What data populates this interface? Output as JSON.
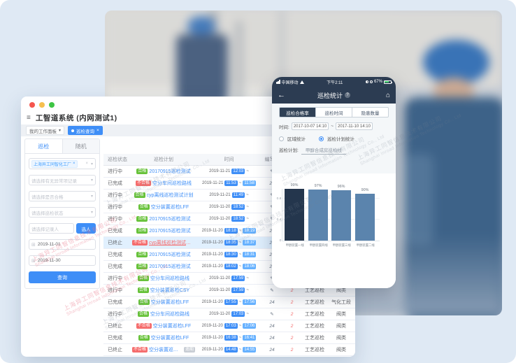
{
  "watermark": {
    "zh": "上海异工同智信息技术有限公司",
    "en": "Shanghai Inroad Information Technology Co., Ltd"
  },
  "colors": {
    "accent": "#3e8ef7",
    "pass_green": "#67c23a",
    "fail_red": "#f56c6c",
    "phone_navy": "#2c3c52",
    "bar_dark": "#24364d",
    "bar_blue": "#5b84ad"
  },
  "desktop": {
    "window_title": "工智道系统 (内网测试1)",
    "burger_icon": "≡",
    "workspace_tab": "我的工作面板",
    "active_tab": "巡检查询",
    "active_tab_close": "×",
    "tab_caret": "▾",
    "sidebar": {
      "tabs": [
        "巡检",
        "随机"
      ],
      "factory_tag": "上海异工同智化工厂",
      "tag_close": "×",
      "selects": [
        "请选择有无异常项记录",
        "请选择是否合格",
        "请选择巡检状态"
      ],
      "recorder_placeholder": "请选择记录人",
      "pick_person_button": "选人",
      "date_start": "2019-11-01",
      "date_end": "2019-11-30",
      "calendar_icon": "⊞",
      "query_button": "查询"
    },
    "table": {
      "headers": [
        "巡检状态",
        "巡检计划",
        "时间",
        "编写人",
        "",
        "",
        ""
      ],
      "rows": [
        {
          "status": "进行中",
          "result": "合格",
          "plan": "20170915巡检测试",
          "red_link": false,
          "date": "2019-11-21",
          "start": "12:03",
          "end": "",
          "items": "✎",
          "abnormal": "2",
          "type": "工艺巡检",
          "area": "阀类",
          "highlight": false,
          "overdue": ""
        },
        {
          "status": "已完成",
          "result": "不合格",
          "plan": "空分车间巡检路线",
          "red_link": false,
          "date": "2019-11-21",
          "start": "11:53",
          "end": "11:58",
          "items": "24",
          "abnormal": "2",
          "type": "工艺巡检",
          "area": "阀类",
          "highlight": false,
          "overdue": ""
        },
        {
          "status": "进行中",
          "result": "合格",
          "plan": "cyp离线巡检测试计划",
          "red_link": false,
          "date": "2019-11-21",
          "start": "11:49",
          "end": "",
          "items": "✎",
          "abnormal": "2",
          "type": "工艺巡检",
          "area": "阀类",
          "highlight": false,
          "overdue": ""
        },
        {
          "status": "进行中",
          "result": "合格",
          "plan": "空分装置巡检LFF",
          "red_link": false,
          "date": "2019-11-20",
          "start": "18:52",
          "end": "",
          "items": "✎",
          "abnormal": "2",
          "type": "工艺巡检",
          "area": "阀类",
          "highlight": false,
          "overdue": ""
        },
        {
          "status": "进行中",
          "result": "合格",
          "plan": "20170915巡检测试",
          "red_link": false,
          "date": "2019-11-20",
          "start": "18:52",
          "end": "",
          "items": "✎",
          "abnormal": "2",
          "type": "工艺巡检",
          "area": "阀类",
          "highlight": false,
          "overdue": ""
        },
        {
          "status": "已完成",
          "result": "合格",
          "plan": "20170915巡检测试",
          "red_link": false,
          "date": "2019-11-20",
          "start": "18:18",
          "end": "18:19",
          "items": "24",
          "abnormal": "2",
          "type": "工艺巡检",
          "area": "阀类",
          "highlight": false,
          "overdue": ""
        },
        {
          "status": "已终止",
          "result": "不合格",
          "plan": "cyp离线巡检测试计划",
          "red_link": true,
          "date": "2019-11-20",
          "start": "18:35",
          "end": "18:37",
          "items": "24",
          "abnormal": "2",
          "type": "工艺巡检",
          "area": "阀类",
          "highlight": true,
          "overdue": ""
        },
        {
          "status": "已完成",
          "result": "合格",
          "plan": "20170915巡检测试",
          "red_link": false,
          "date": "2019-11-20",
          "start": "18:30",
          "end": "18:31",
          "items": "24",
          "abnormal": "2",
          "type": "工艺巡检",
          "area": "阀类",
          "highlight": false,
          "overdue": ""
        },
        {
          "status": "已完成",
          "result": "合格",
          "plan": "20170915巡检测试",
          "red_link": false,
          "date": "2019-11-20",
          "start": "18:02",
          "end": "18:06",
          "items": "24",
          "abnormal": "2",
          "type": "工艺巡检",
          "area": "阀类",
          "highlight": false,
          "overdue": ""
        },
        {
          "status": "进行中",
          "result": "合格",
          "plan": "空分车间巡检路线",
          "red_link": false,
          "date": "2019-11-20",
          "start": "17:59",
          "end": "",
          "items": "✎",
          "abnormal": "2",
          "type": "工艺巡检",
          "area": "阀类",
          "highlight": false,
          "overdue": ""
        },
        {
          "status": "进行中",
          "result": "合格",
          "plan": "空分装置巡检CSY",
          "red_link": false,
          "date": "2019-11-20",
          "start": "17:59",
          "end": "",
          "items": "✎",
          "abnormal": "2",
          "type": "工艺巡检",
          "area": "阀类",
          "highlight": false,
          "overdue": ""
        },
        {
          "status": "已完成",
          "result": "合格",
          "plan": "空分装置巡检LFF",
          "red_link": false,
          "date": "2019-11-20",
          "start": "17:55",
          "end": "17:56",
          "items": "24",
          "abnormal": "2",
          "type": "工艺巡检",
          "area": "气化工段",
          "highlight": false,
          "overdue": ""
        },
        {
          "status": "进行中",
          "result": "合格",
          "plan": "空分车间巡检路线",
          "red_link": false,
          "date": "2019-11-20",
          "start": "17:03",
          "end": "",
          "items": "✎",
          "abnormal": "2",
          "type": "工艺巡检",
          "area": "阀类",
          "highlight": false,
          "overdue": ""
        },
        {
          "status": "已终止",
          "result": "不合格",
          "plan": "空分装置巡检LFF",
          "red_link": false,
          "date": "2019-11-20",
          "start": "17:03",
          "end": "17:06",
          "items": "24",
          "abnormal": "2",
          "type": "工艺巡检",
          "area": "阀类",
          "highlight": false,
          "overdue": ""
        },
        {
          "status": "已完成",
          "result": "合格",
          "plan": "空分装置巡检LFF",
          "red_link": false,
          "date": "2019-11-20",
          "start": "16:38",
          "end": "16:41",
          "items": "24",
          "abnormal": "2",
          "type": "工艺巡检",
          "area": "阀类",
          "highlight": false,
          "overdue": ""
        },
        {
          "status": "已终止",
          "result": "不合格",
          "plan": "空分装置巡检LFF",
          "red_link": false,
          "date": "2019-11-20",
          "start": "14:48",
          "end": "14:55",
          "items": "24",
          "abnormal": "2",
          "type": "工艺巡检",
          "area": "阀类",
          "highlight": false,
          "overdue": "逾期"
        }
      ]
    }
  },
  "phone": {
    "status_bar": {
      "carrier": "中国移动",
      "time": "下午2:11",
      "battery": "67%"
    },
    "nav": {
      "back": "←",
      "title": "巡检统计",
      "badge": "?",
      "home": "⌂"
    },
    "segments": [
      "巡检合格率",
      "巡检时间",
      "隐患数量"
    ],
    "active_segment": 0,
    "time_label": "时间:",
    "time_from": "2017-10-07 14:10",
    "tilde": "~",
    "time_to": "2017-11-10 14:10",
    "radio_area": "区域统计",
    "radio_plan": "巡检计划统计",
    "plan_label": "巡检计划:",
    "plan_value": "甲醇合成房巡检线"
  },
  "chart_data": {
    "type": "bar",
    "categories": [
      "甲醇装置一线",
      "甲醇装置四线",
      "甲醇装置三线",
      "甲醇装置二线"
    ],
    "values": [
      0.99,
      0.97,
      0.96,
      0.9
    ],
    "value_labels": [
      "99%",
      "97%",
      "96%",
      "90%"
    ],
    "title": "",
    "xlabel": "",
    "ylabel": "",
    "ylim": [
      0,
      1.0
    ],
    "yticks": [
      {
        "v": 0,
        "label": "0"
      },
      {
        "v": 0.4,
        "label": "0.4"
      },
      {
        "v": 0.8,
        "label": "0.8"
      }
    ],
    "grid": true,
    "legend": null,
    "bar_colors": [
      "#24364d",
      "#5b84ad",
      "#5b84ad",
      "#5b84ad"
    ]
  }
}
